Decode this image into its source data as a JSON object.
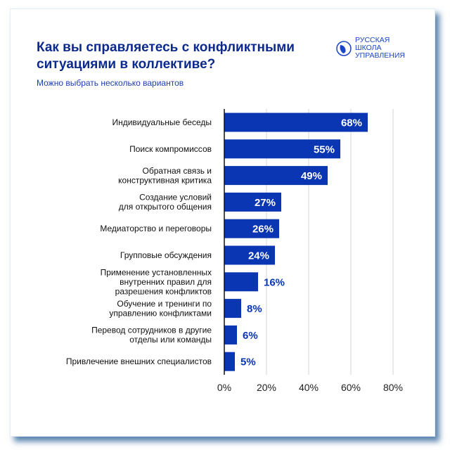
{
  "title": "Как вы справляетесь с конфликтными ситуациями в коллективе?",
  "subtitle": "Можно выбрать несколько вариантов",
  "logo": {
    "text": [
      "РУССКАЯ",
      "ШКОЛА",
      "УПРАВЛЕНИЯ"
    ]
  },
  "colors": {
    "bar": "#0a36b4",
    "title": "#0b2a8c",
    "value_outside": "#0a36b4"
  },
  "chart_data": {
    "type": "bar",
    "orientation": "horizontal",
    "categories": [
      [
        "Индивидуальные беседы"
      ],
      [
        "Поиск компромиссов"
      ],
      [
        "Обратная связь и",
        "конструктивная критика"
      ],
      [
        "Создание условий",
        "для открытого общения"
      ],
      [
        "Медиаторство и переговоры"
      ],
      [
        "Групповые обсуждения"
      ],
      [
        "Применение установленных",
        "внутренних правил для",
        "разрешения конфликтов"
      ],
      [
        "Обучение и тренинги по",
        "управлению конфликтами"
      ],
      [
        "Перевод сотрудников в другие",
        "отделы или команды"
      ],
      [
        "Привлечение внешних специалистов"
      ]
    ],
    "values": [
      68,
      55,
      49,
      27,
      26,
      24,
      16,
      8,
      6,
      5
    ],
    "value_labels": [
      "68%",
      "55%",
      "49%",
      "27%",
      "26%",
      "24%",
      "16%",
      "8%",
      "6%",
      "5%"
    ],
    "xlim": [
      0,
      80
    ],
    "xticks": [
      0,
      20,
      40,
      60,
      80
    ],
    "xtick_labels": [
      "0%",
      "20%",
      "40%",
      "60%",
      "80%"
    ],
    "grid": true
  }
}
